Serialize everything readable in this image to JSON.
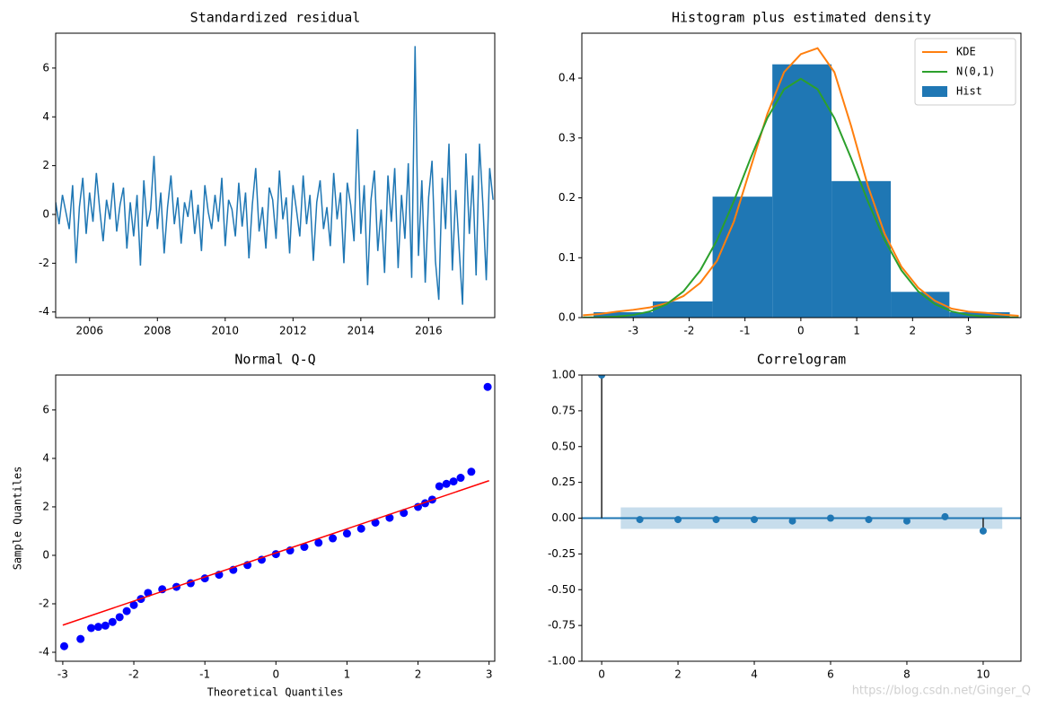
{
  "chart_data": [
    {
      "type": "line",
      "title": "Standardized residual",
      "color": "#1f77b4",
      "x": [
        2005,
        2005.1,
        2005.2,
        2005.3,
        2005.4,
        2005.5,
        2005.6,
        2005.7,
        2005.8,
        2005.9,
        2006,
        2006.1,
        2006.2,
        2006.3,
        2006.4,
        2006.5,
        2006.6,
        2006.7,
        2006.8,
        2006.9,
        2007,
        2007.1,
        2007.2,
        2007.3,
        2007.4,
        2007.5,
        2007.6,
        2007.7,
        2007.8,
        2007.9,
        2008,
        2008.1,
        2008.2,
        2008.3,
        2008.4,
        2008.5,
        2008.6,
        2008.7,
        2008.8,
        2008.9,
        2009,
        2009.1,
        2009.2,
        2009.3,
        2009.4,
        2009.5,
        2009.6,
        2009.7,
        2009.8,
        2009.9,
        2010,
        2010.1,
        2010.2,
        2010.3,
        2010.4,
        2010.5,
        2010.6,
        2010.7,
        2010.8,
        2010.9,
        2011,
        2011.1,
        2011.2,
        2011.3,
        2011.4,
        2011.5,
        2011.6,
        2011.7,
        2011.8,
        2011.9,
        2012,
        2012.1,
        2012.2,
        2012.3,
        2012.4,
        2012.5,
        2012.6,
        2012.7,
        2012.8,
        2012.9,
        2013,
        2013.1,
        2013.2,
        2013.3,
        2013.4,
        2013.5,
        2013.6,
        2013.7,
        2013.8,
        2013.9,
        2014,
        2014.1,
        2014.2,
        2014.3,
        2014.4,
        2014.5,
        2014.6,
        2014.7,
        2014.8,
        2014.9,
        2015,
        2015.1,
        2015.2,
        2015.3,
        2015.4,
        2015.5,
        2015.6,
        2015.7,
        2015.8,
        2015.9,
        2016,
        2016.1,
        2016.2,
        2016.3,
        2016.4,
        2016.5,
        2016.6,
        2016.7,
        2016.8,
        2016.9,
        2017,
        2017.1,
        2017.2,
        2017.3,
        2017.4,
        2017.5,
        2017.6,
        2017.7,
        2017.8,
        2017.9
      ],
      "values": [
        0.5,
        -0.4,
        0.8,
        0.1,
        -0.6,
        1.2,
        -2.0,
        0.3,
        1.5,
        -0.8,
        0.9,
        -0.3,
        1.7,
        0.2,
        -1.1,
        0.6,
        -0.2,
        1.3,
        -0.7,
        0.4,
        1.1,
        -1.4,
        0.5,
        -0.9,
        0.8,
        -2.1,
        1.4,
        -0.5,
        0.2,
        2.4,
        -0.6,
        0.9,
        -1.6,
        0.3,
        1.6,
        -0.4,
        0.7,
        -1.2,
        0.5,
        -0.1,
        1.0,
        -0.8,
        0.4,
        -1.5,
        1.2,
        0.1,
        -0.6,
        0.8,
        -0.3,
        1.5,
        -1.3,
        0.6,
        0.2,
        -0.9,
        1.3,
        -0.5,
        0.9,
        -1.8,
        0.4,
        1.9,
        -0.7,
        0.3,
        -1.4,
        1.1,
        0.6,
        -1.0,
        1.8,
        -0.2,
        0.7,
        -1.6,
        1.2,
        0.2,
        -0.9,
        1.6,
        -0.4,
        0.8,
        -1.9,
        0.5,
        1.4,
        -0.6,
        0.3,
        -1.3,
        1.7,
        -0.2,
        0.9,
        -2.0,
        1.3,
        0.4,
        -1.1,
        3.5,
        -0.8,
        1.2,
        -2.9,
        0.6,
        1.8,
        -1.5,
        0.2,
        -2.4,
        1.6,
        -0.3,
        1.9,
        -2.2,
        0.8,
        -1.0,
        2.1,
        -2.6,
        6.9,
        -1.7,
        1.4,
        -2.8,
        0.7,
        2.2,
        -1.9,
        -3.5,
        1.5,
        -0.6,
        2.9,
        -2.3,
        1.0,
        -1.4,
        -3.7,
        2.5,
        -0.8,
        1.6,
        -2.5,
        2.9,
        0.4,
        -2.7,
        1.9,
        0.6
      ],
      "xlim": [
        2005,
        2017.95
      ],
      "xticks": [
        2006,
        2008,
        2010,
        2012,
        2014,
        2016
      ],
      "ylim": [
        -4.23,
        7.43
      ],
      "yticks": [
        -4,
        -2,
        0,
        2,
        4,
        6
      ]
    },
    {
      "type": "histogram",
      "title": "Histogram plus estimated density",
      "bins": [
        -3.71,
        -2.65,
        -1.58,
        -0.51,
        0.55,
        1.61,
        2.66,
        3.74
      ],
      "hist": {
        "name": "Hist",
        "color": "#1f77b4",
        "values": [
          0.009,
          0.027,
          0.202,
          0.423,
          0.228,
          0.043,
          0.009
        ]
      },
      "x": [
        -3.9,
        -3.6,
        -3.3,
        -3.0,
        -2.7,
        -2.4,
        -2.1,
        -1.8,
        -1.5,
        -1.2,
        -0.9,
        -0.6,
        -0.3,
        0,
        0.3,
        0.6,
        0.9,
        1.2,
        1.5,
        1.8,
        2.1,
        2.4,
        2.7,
        3.0,
        3.3,
        3.6,
        3.9
      ],
      "series": [
        {
          "name": "KDE",
          "color": "#ff7f0e",
          "values": [
            0.004,
            0.006,
            0.01,
            0.013,
            0.017,
            0.024,
            0.036,
            0.058,
            0.095,
            0.16,
            0.25,
            0.34,
            0.41,
            0.44,
            0.45,
            0.41,
            0.32,
            0.22,
            0.14,
            0.085,
            0.05,
            0.028,
            0.015,
            0.01,
            0.008,
            0.005,
            0.003
          ]
        },
        {
          "name": "N(0,1)",
          "color": "#2ca02c",
          "values": [
            0.0002,
            0.0006,
            0.0017,
            0.0044,
            0.0104,
            0.0224,
            0.044,
            0.079,
            0.1295,
            0.1942,
            0.2661,
            0.3332,
            0.3814,
            0.3989,
            0.3814,
            0.3332,
            0.2661,
            0.1942,
            0.1295,
            0.079,
            0.044,
            0.0224,
            0.0104,
            0.0044,
            0.0017,
            0.0006,
            0.0002
          ]
        }
      ],
      "legend": "upper right",
      "xlim": [
        -3.92,
        3.94
      ],
      "xticks": [
        -3,
        -2,
        -1,
        0,
        1,
        2,
        3
      ],
      "ylim": [
        0,
        0.475
      ],
      "yticks": [
        {
          "value": 0,
          "label": "0.0"
        },
        0.1,
        0.2,
        0.3,
        0.4
      ]
    },
    {
      "type": "scatter",
      "title": "Normal Q-Q",
      "xlabel": "Theoretical Quantiles",
      "ylabel": "Sample Quantiles",
      "color": "#0000ff",
      "line_color": "#ff0000",
      "x": [
        -2.98,
        -2.75,
        -2.6,
        -2.5,
        -2.4,
        -2.3,
        -2.2,
        -2.1,
        -2.0,
        -1.9,
        -1.8,
        -1.6,
        -1.4,
        -1.2,
        -1.0,
        -0.8,
        -0.6,
        -0.4,
        -0.2,
        0,
        0.2,
        0.4,
        0.6,
        0.8,
        1.0,
        1.2,
        1.4,
        1.6,
        1.8,
        2.0,
        2.1,
        2.2,
        2.3,
        2.4,
        2.5,
        2.6,
        2.75,
        2.98
      ],
      "values": [
        -3.75,
        -3.45,
        -3.0,
        -2.95,
        -2.9,
        -2.75,
        -2.55,
        -2.3,
        -2.05,
        -1.8,
        -1.55,
        -1.4,
        -1.3,
        -1.15,
        -0.95,
        -0.8,
        -0.6,
        -0.4,
        -0.18,
        0.05,
        0.2,
        0.35,
        0.52,
        0.7,
        0.9,
        1.1,
        1.35,
        1.55,
        1.75,
        2.0,
        2.15,
        2.3,
        2.85,
        2.95,
        3.05,
        3.2,
        3.45,
        6.95
      ],
      "line_x": [
        -3,
        3
      ],
      "line_y": [
        -2.88,
        3.08
      ],
      "xlim": [
        -3.1,
        3.08
      ],
      "xticks": [
        -3,
        -2,
        -1,
        0,
        1,
        2,
        3
      ],
      "ylim": [
        -4.37,
        7.44
      ],
      "yticks": [
        -4,
        -2,
        0,
        2,
        4,
        6
      ]
    },
    {
      "type": "stem",
      "title": "Correlogram",
      "color": "#1f77b4",
      "x": [
        0,
        1,
        2,
        3,
        4,
        5,
        6,
        7,
        8,
        9,
        10
      ],
      "values": [
        1,
        -0.01,
        -0.01,
        -0.01,
        -0.01,
        -0.02,
        0.0,
        -0.01,
        -0.02,
        0.01,
        -0.09
      ],
      "conf_x": [
        0.5,
        10.5
      ],
      "conf_lim": [
        -0.075,
        0.075
      ],
      "xlim": [
        -0.52,
        10.99
      ],
      "xticks": [
        0,
        2,
        4,
        6,
        8,
        10
      ],
      "ylim": [
        -1,
        1
      ],
      "yticks": [
        {
          "value": 1,
          "label": "1.00"
        },
        {
          "value": 0.75,
          "label": "0.75"
        },
        {
          "value": 0.5,
          "label": "0.50"
        },
        {
          "value": 0.25,
          "label": "0.25"
        },
        {
          "value": 0,
          "label": "0.00"
        },
        {
          "value": -0.25,
          "label": "-0.25"
        },
        {
          "value": -0.5,
          "label": "-0.50"
        },
        {
          "value": -0.75,
          "label": "-0.75"
        },
        {
          "value": -1,
          "label": "-1.00"
        }
      ]
    }
  ],
  "watermark": "https://blog.csdn.net/Ginger_Q"
}
